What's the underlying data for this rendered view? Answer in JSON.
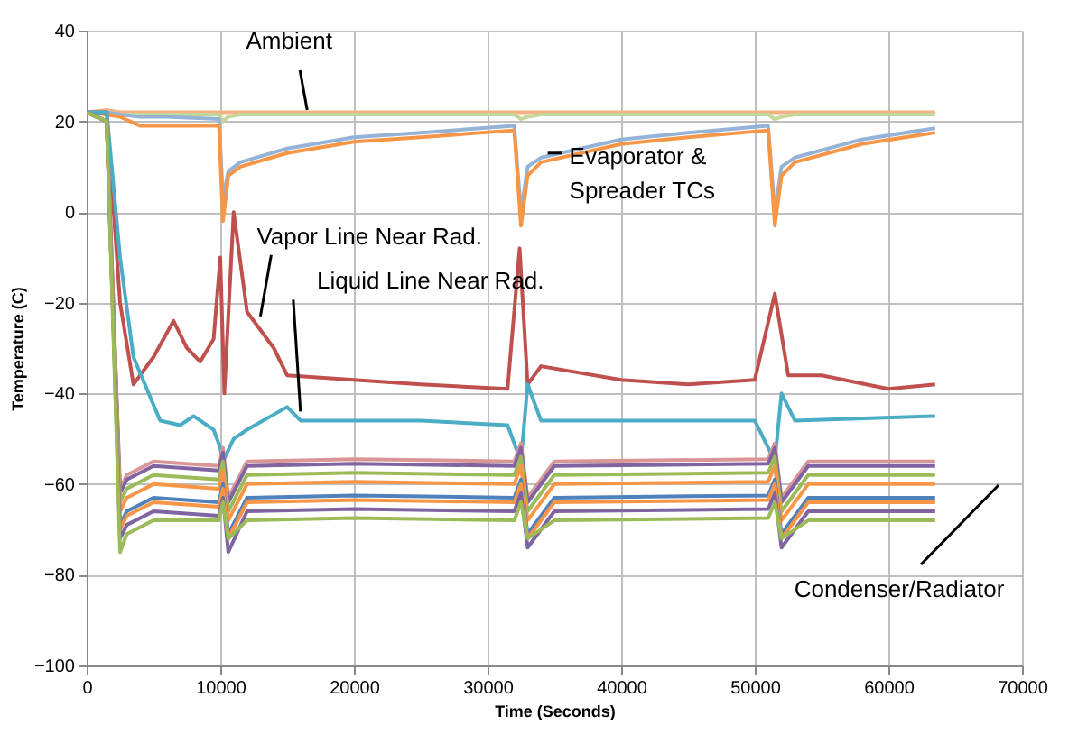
{
  "chart_data": {
    "type": "line",
    "xlabel": "Time (Seconds)",
    "ylabel": "Temperature (C)",
    "xlim": [
      0,
      70000
    ],
    "xticks": [
      0,
      10000,
      20000,
      30000,
      40000,
      50000,
      60000,
      70000
    ],
    "ylim": [
      -100,
      40
    ],
    "yticks": [
      -100,
      -80,
      -60,
      -40,
      -20,
      0,
      20,
      40
    ],
    "grid": true,
    "legend": false,
    "marker": "none",
    "line_style": "solid",
    "x": [
      0,
      1500,
      2500,
      4000,
      6000,
      9900,
      10200,
      10600,
      11500,
      15000,
      20000,
      25000,
      32000,
      32500,
      33000,
      34000,
      40000,
      45000,
      51000,
      51500,
      52000,
      53000,
      58000,
      63500
    ],
    "series": [
      {
        "color": "#f4b183",
        "values": [
          22,
          22.5,
          22,
          22,
          22,
          22,
          22,
          22,
          22,
          22,
          22,
          22,
          22,
          22,
          22,
          22,
          22,
          22,
          22,
          22,
          22,
          22,
          22,
          22
        ]
      },
      {
        "color": "#c4d79b",
        "values": [
          22,
          22,
          21.5,
          21.5,
          21.5,
          21.5,
          20,
          21,
          21.5,
          21.5,
          21.5,
          21.5,
          21.5,
          20.5,
          21,
          21.5,
          21.5,
          21.5,
          21.5,
          20.5,
          21,
          21.5,
          21.5,
          21.5
        ]
      },
      {
        "color": "#95b3d7",
        "values": [
          22,
          22,
          21.5,
          21,
          21,
          20.5,
          3,
          9,
          11,
          14,
          16.5,
          17.5,
          19,
          0,
          10,
          12,
          16,
          17.5,
          19,
          0,
          10,
          12,
          16,
          18.5
        ]
      },
      {
        "color": "#f79646",
        "values": [
          22,
          21.5,
          21,
          19,
          19,
          19,
          -2,
          8,
          10,
          13,
          15.5,
          16.5,
          18,
          -3,
          8,
          11,
          15,
          16.5,
          18,
          -3,
          8,
          11,
          15,
          17.5
        ]
      },
      {
        "color": "#c0504d",
        "x": [
          0,
          1500,
          2500,
          3500,
          5000,
          6500,
          7500,
          8500,
          9500,
          10000,
          10300,
          11000,
          12000,
          14000,
          15000,
          20000,
          25000,
          31500,
          32400,
          33000,
          34000,
          40000,
          45000,
          50000,
          51500,
          52500,
          55000,
          60000,
          63500
        ],
        "values": [
          22,
          22,
          -20,
          -38,
          -32,
          -24,
          -30,
          -33,
          -28,
          -10,
          -40,
          0,
          -22,
          -30,
          -36,
          -37,
          -38,
          -39,
          -8,
          -38,
          -34,
          -37,
          -38,
          -37,
          -18,
          -36,
          -36,
          -39,
          -38
        ]
      },
      {
        "color": "#4bacc6",
        "x": [
          0,
          1500,
          2500,
          3500,
          5500,
          7000,
          8000,
          9500,
          10000,
          10200,
          11000,
          12000,
          15000,
          16000,
          25000,
          31500,
          32500,
          33000,
          34000,
          45000,
          50000,
          51500,
          52000,
          53000,
          63500
        ],
        "values": [
          22,
          22,
          -10,
          -32,
          -46,
          -47,
          -45,
          -48,
          -52,
          -55,
          -50,
          -48,
          -43,
          -46,
          -46,
          -47,
          -55,
          -38,
          -46,
          -46,
          -46,
          -55,
          -40,
          -46,
          -45
        ]
      },
      {
        "color": "#d99694",
        "x": [
          0,
          1500,
          2500,
          3000,
          5000,
          9900,
          10200,
          10600,
          12000,
          20000,
          32000,
          32500,
          33000,
          35000,
          51000,
          51500,
          52000,
          54000,
          63500
        ],
        "values": [
          22,
          20,
          -61,
          -58,
          -55,
          -56,
          -52,
          -63,
          -55,
          -54.5,
          -55,
          -51,
          -63,
          -55,
          -54.5,
          -51,
          -63,
          -55,
          -55
        ]
      },
      {
        "color": "#8064a2",
        "x": [
          0,
          1500,
          2500,
          3000,
          5000,
          9900,
          10200,
          10600,
          12000,
          20000,
          32000,
          32500,
          33000,
          35000,
          51000,
          51500,
          52000,
          54000,
          63500
        ],
        "values": [
          22,
          20,
          -62,
          -59,
          -56,
          -57,
          -53,
          -64,
          -56,
          -55.5,
          -56,
          -52,
          -64,
          -56,
          -55.5,
          -52,
          -64,
          -56,
          -56
        ]
      },
      {
        "color": "#9bbb59",
        "x": [
          0,
          1500,
          2500,
          3000,
          5000,
          9900,
          10200,
          10600,
          12000,
          20000,
          32000,
          32500,
          33000,
          35000,
          51000,
          51500,
          52000,
          54000,
          63500
        ],
        "values": [
          22,
          20,
          -64,
          -61,
          -58,
          -59,
          -55,
          -66,
          -58,
          -57.5,
          -58,
          -54,
          -66,
          -58,
          -57.5,
          -54,
          -66,
          -58,
          -58
        ]
      },
      {
        "color": "#f79646",
        "x": [
          0,
          1500,
          2500,
          3000,
          5000,
          9900,
          10200,
          10600,
          12000,
          20000,
          32000,
          32500,
          33000,
          35000,
          51000,
          51500,
          52000,
          54000,
          63500
        ],
        "values": [
          22,
          20,
          -66,
          -63,
          -60,
          -61,
          -57,
          -68,
          -60,
          -59.5,
          -60,
          -56,
          -68,
          -60,
          -59.5,
          -56,
          -68,
          -60,
          -60
        ]
      },
      {
        "color": "#4f81bd",
        "x": [
          0,
          1500,
          2500,
          3000,
          5000,
          9900,
          10200,
          10600,
          12000,
          20000,
          32000,
          32500,
          33000,
          35000,
          51000,
          51500,
          52000,
          54000,
          63500
        ],
        "values": [
          22,
          20,
          -69,
          -66,
          -63,
          -64,
          -60,
          -71,
          -63,
          -62.5,
          -63,
          -59,
          -71,
          -63,
          -62.5,
          -59,
          -71,
          -63,
          -63
        ]
      },
      {
        "color": "#f79646",
        "x": [
          0,
          1500,
          2500,
          3000,
          5000,
          9900,
          10200,
          10600,
          12000,
          20000,
          32000,
          32500,
          33000,
          35000,
          51000,
          51500,
          52000,
          54000,
          63500
        ],
        "values": [
          22,
          20,
          -70,
          -67,
          -64,
          -65,
          -61,
          -72,
          -64,
          -63.5,
          -64,
          -60,
          -72,
          -64,
          -63.5,
          -60,
          -72,
          -64,
          -64
        ]
      },
      {
        "color": "#8064a2",
        "x": [
          0,
          1500,
          2500,
          3000,
          5000,
          9900,
          10200,
          10600,
          12000,
          20000,
          32000,
          32500,
          33000,
          35000,
          51000,
          51500,
          52000,
          54000,
          63500
        ],
        "values": [
          22,
          20,
          -72,
          -69,
          -66,
          -67,
          -63,
          -75,
          -66,
          -65.5,
          -66,
          -62,
          -74,
          -66,
          -65.5,
          -62,
          -74,
          -66,
          -66
        ]
      },
      {
        "color": "#9bbb59",
        "x": [
          0,
          1500,
          2500,
          3000,
          5000,
          9900,
          10200,
          10600,
          12000,
          20000,
          32000,
          32500,
          33000,
          35000,
          51000,
          51500,
          52000,
          54000,
          63500
        ],
        "values": [
          22,
          20,
          -75,
          -71,
          -68,
          -68,
          -64,
          -72,
          -68,
          -67.5,
          -68,
          -64,
          -72,
          -68,
          -67.5,
          -64,
          -72,
          -68,
          -68
        ]
      }
    ],
    "annotations": [
      {
        "text": "Ambient",
        "x": 16500,
        "y": 22.5
      },
      {
        "text": "Evaporator &\nSpreader TCs",
        "x": 34500,
        "y": 13
      },
      {
        "text": "Vapor Line Near Rad.",
        "x": 13000,
        "y": -23
      },
      {
        "text": "Liquid Line Near Rad.",
        "x": 16000,
        "y": -44
      },
      "Condenser/Radiator"
    ]
  }
}
